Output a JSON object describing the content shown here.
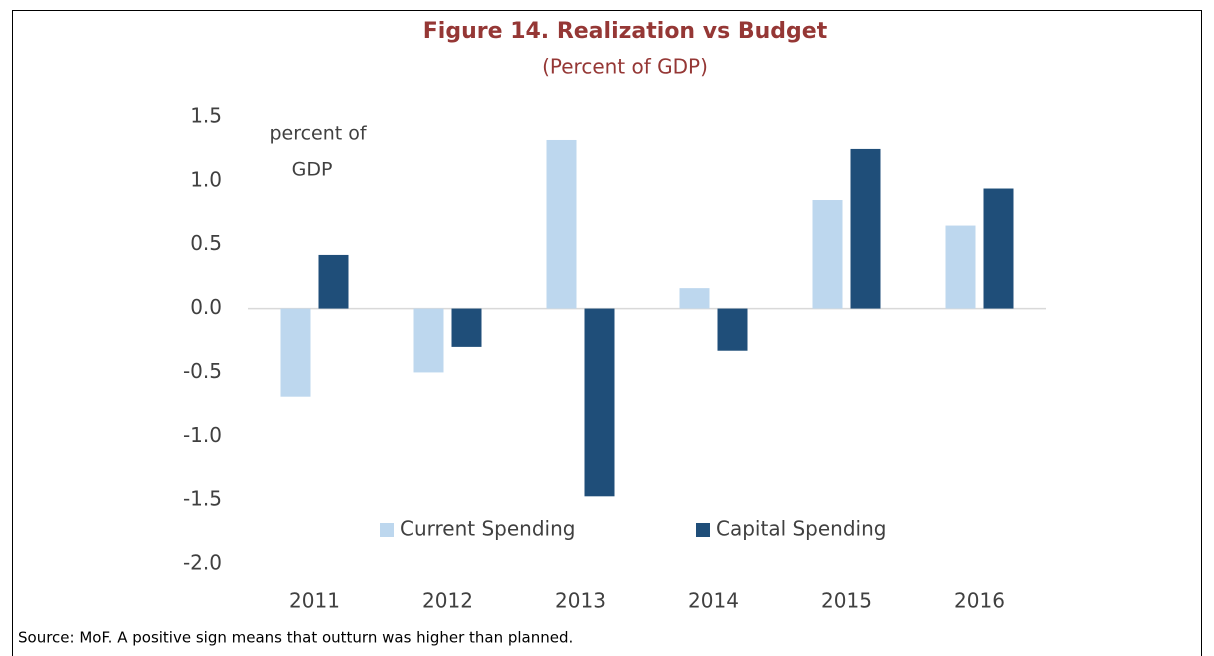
{
  "chart_data": {
    "type": "bar",
    "title": "Figure 14. Realization vs Budget",
    "subtitle": "(Percent of GDP)",
    "annotation": [
      "percent of",
      "GDP"
    ],
    "source": "Source: MoF. A positive sign means that outturn was higher than planned.",
    "categories": [
      "2011",
      "2012",
      "2013",
      "2014",
      "2015",
      "2016"
    ],
    "series": [
      {
        "name": "Current Spending",
        "color": "#bdd7ee",
        "values": [
          -0.69,
          -0.5,
          1.32,
          0.16,
          0.85,
          0.65
        ]
      },
      {
        "name": "Capital Spending",
        "color": "#1f4e79",
        "values": [
          0.42,
          -0.3,
          -1.47,
          -0.33,
          1.25,
          0.94
        ]
      }
    ],
    "ylim": [
      -2.0,
      1.5
    ],
    "yticks": [
      {
        "value": -2.0,
        "label": "-2.0"
      },
      {
        "value": -1.5,
        "label": "-1.5"
      },
      {
        "value": -1.0,
        "label": "-1.0"
      },
      {
        "value": -0.5,
        "label": "-0.5"
      },
      {
        "value": 0,
        "label": "0.0"
      },
      {
        "value": 0.5,
        "label": "0.5"
      },
      {
        "value": 1.0,
        "label": "1.0"
      },
      {
        "value": 1.5,
        "label": "1.5"
      }
    ],
    "grid": false,
    "legend": "bottom"
  }
}
